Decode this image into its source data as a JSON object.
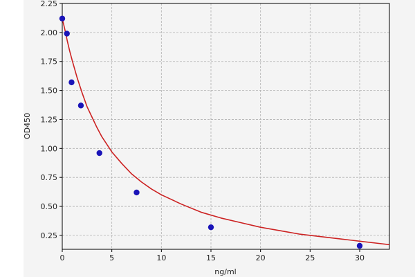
{
  "chart_data": {
    "type": "scatter",
    "title": "",
    "xlabel": "ng/ml",
    "ylabel": "OD450",
    "xlim": [
      0,
      33
    ],
    "ylim": [
      0.13,
      2.25
    ],
    "x_ticks": [
      0,
      5,
      10,
      15,
      20,
      25,
      30
    ],
    "y_ticks": [
      0.25,
      0.5,
      0.75,
      1.0,
      1.25,
      1.5,
      1.75,
      2.0,
      2.25
    ],
    "x_tick_labels": [
      "0",
      "5",
      "10",
      "15",
      "20",
      "25",
      "30"
    ],
    "y_tick_labels": [
      "0.25",
      "0.50",
      "0.75",
      "1.00",
      "1.25",
      "1.50",
      "1.75",
      "2.00",
      "2.25"
    ],
    "grid": true,
    "series": [
      {
        "kind": "points",
        "x": [
          0,
          0.47,
          0.94,
          1.88,
          3.75,
          7.5,
          15,
          30
        ],
        "y": [
          2.12,
          1.99,
          1.57,
          1.37,
          0.96,
          0.62,
          0.32,
          0.16
        ],
        "color": "#1a14b8"
      },
      {
        "kind": "fitted-curve",
        "x": [
          0,
          0.25,
          0.5,
          0.75,
          1,
          1.5,
          2,
          2.5,
          3,
          3.5,
          4,
          5,
          6,
          7,
          8,
          9,
          10,
          12,
          14,
          16,
          18,
          20,
          22,
          24,
          26,
          28,
          30,
          32,
          33
        ],
        "y": [
          2.12,
          2.03,
          1.93,
          1.84,
          1.76,
          1.61,
          1.48,
          1.36,
          1.27,
          1.18,
          1.1,
          0.97,
          0.87,
          0.78,
          0.71,
          0.65,
          0.6,
          0.52,
          0.45,
          0.4,
          0.36,
          0.32,
          0.29,
          0.26,
          0.24,
          0.22,
          0.2,
          0.18,
          0.17
        ],
        "color": "#cc2222"
      }
    ]
  }
}
